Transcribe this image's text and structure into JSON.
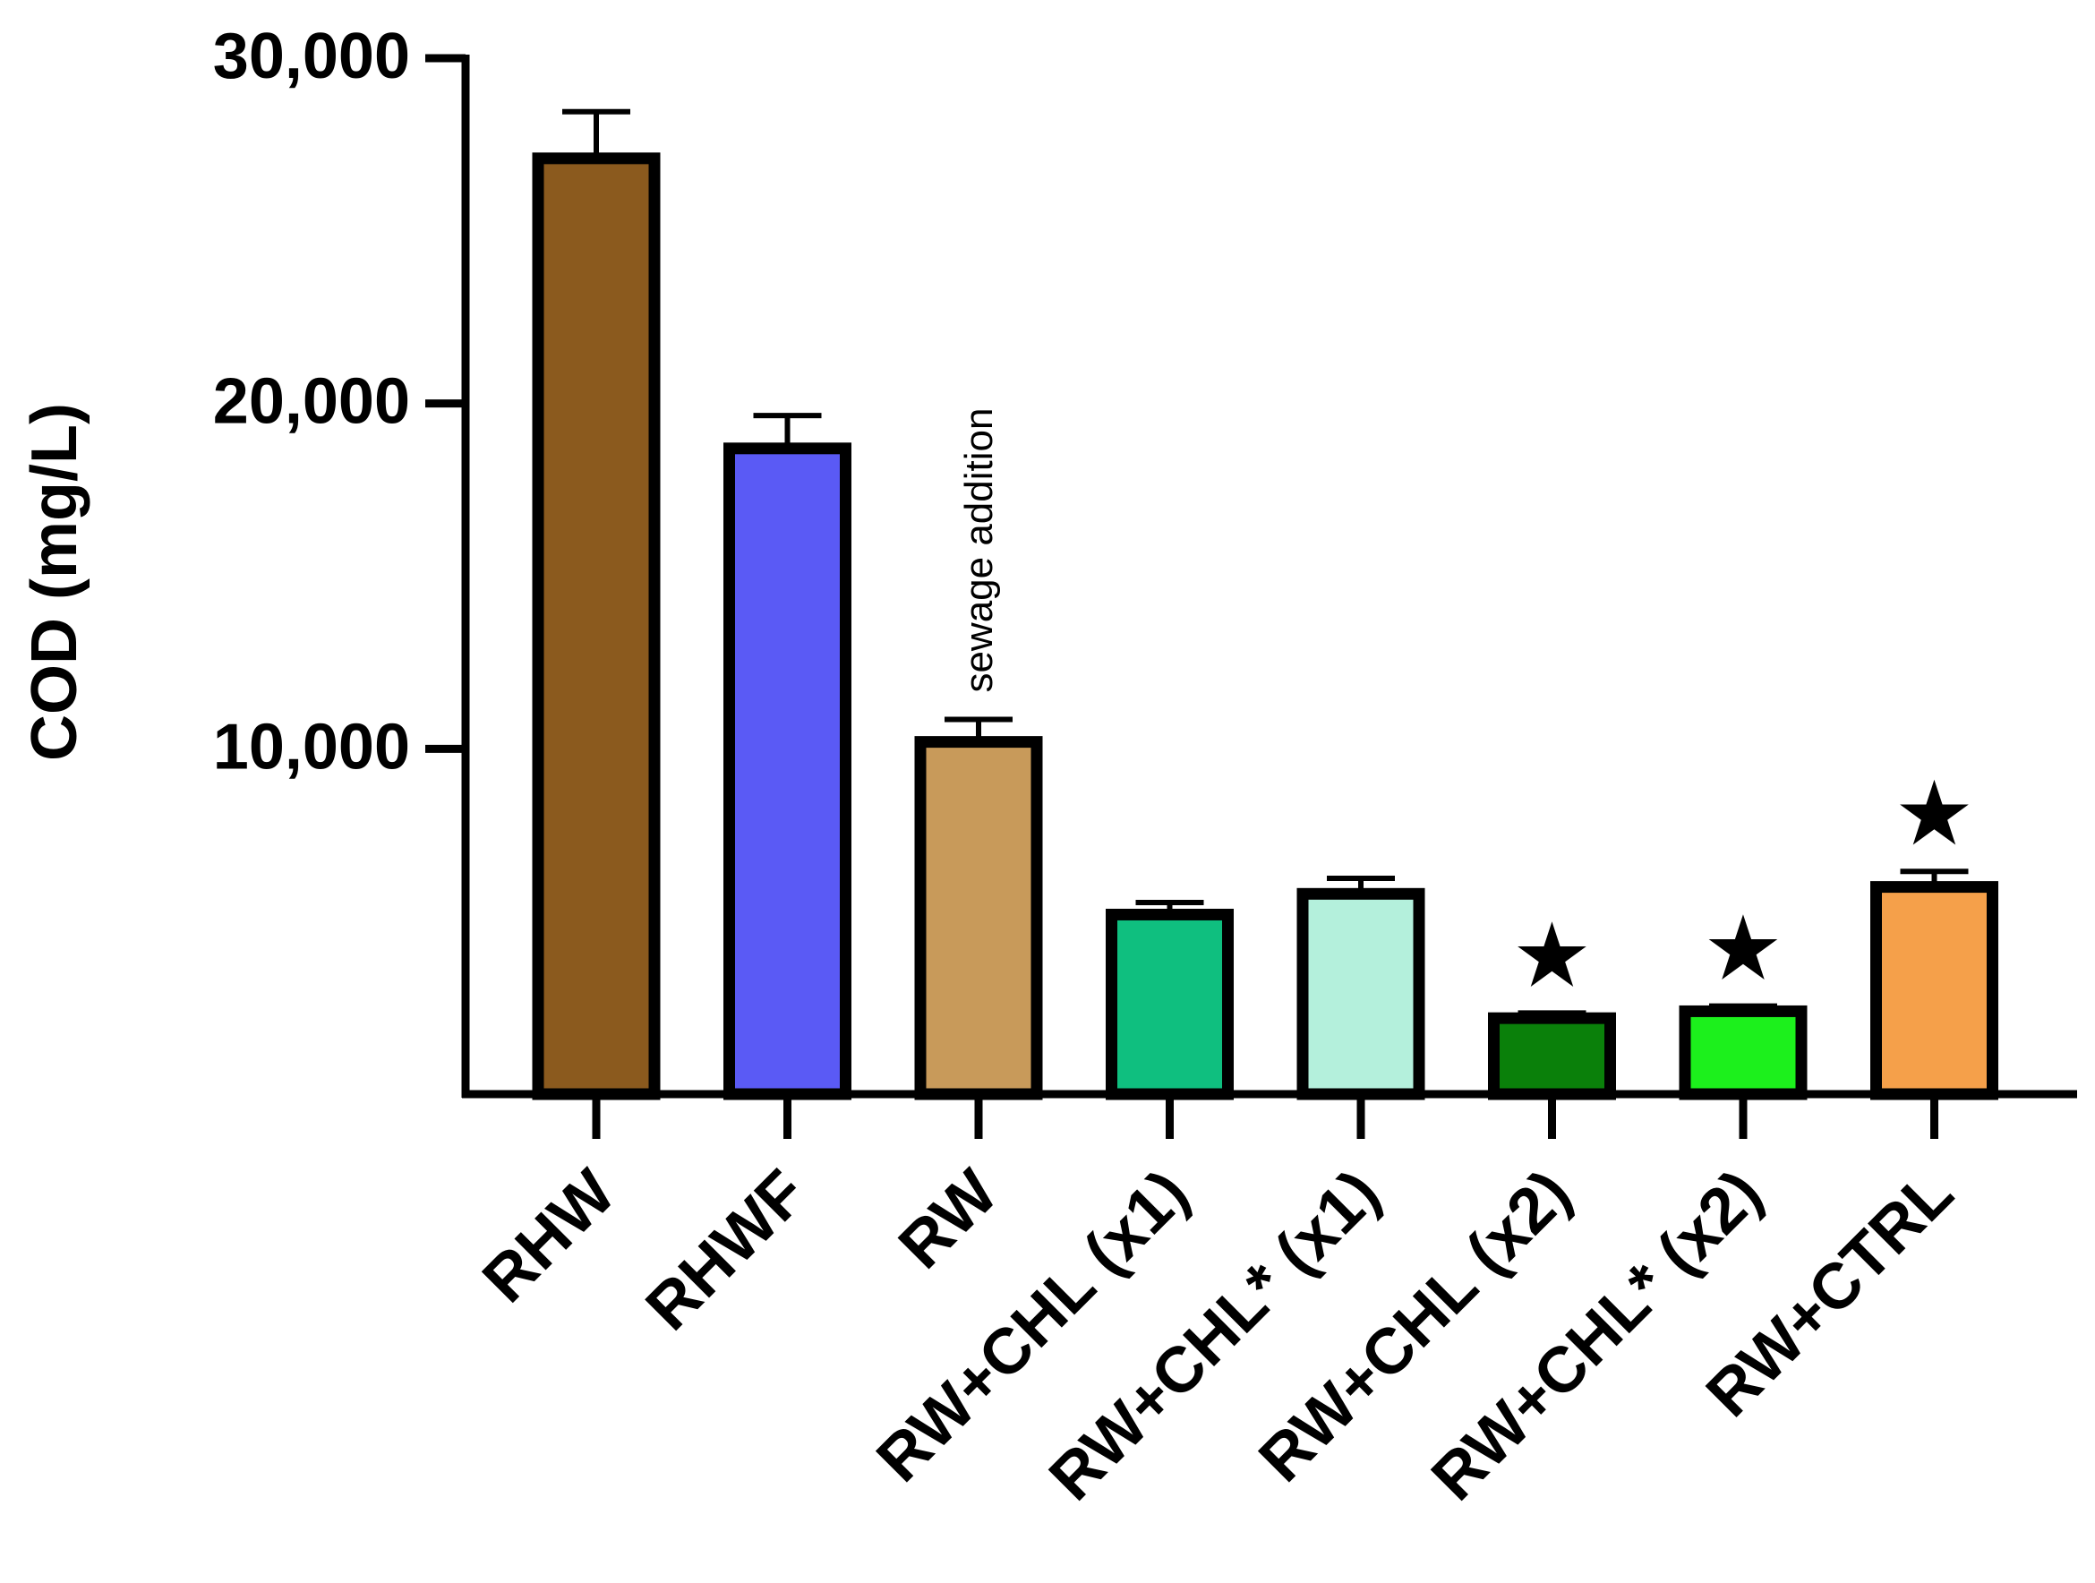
{
  "chart_data": {
    "type": "bar",
    "title": "",
    "xlabel": "",
    "ylabel": "COD (mg/L)",
    "ylim": [
      0,
      30000
    ],
    "yticks": [
      10000,
      20000,
      30000
    ],
    "ytick_labels": [
      "10,000",
      "20,000",
      "30,000"
    ],
    "grid": false,
    "legend": "none",
    "categories": [
      "RHW",
      "RHWF",
      "RW",
      "RW+CHL (x1)",
      "RW+CHL* (x1)",
      "RW+CHL (x2)",
      "RW+CHL* (x2)",
      "RW+CTRL"
    ],
    "values": [
      27100,
      18700,
      10200,
      5200,
      5800,
      2200,
      2400,
      6000
    ],
    "errors": [
      1350,
      950,
      650,
      350,
      450,
      150,
      150,
      450
    ],
    "colors": [
      "#8B5A1E",
      "#5A5AF5",
      "#C89A5A",
      "#0FBF7F",
      "#B4F0DC",
      "#0A800A",
      "#1CF01C",
      "#F5A04A"
    ],
    "significance": [
      "",
      "",
      "",
      "",
      "",
      "★",
      "★",
      "★"
    ],
    "annotations": [
      {
        "category": "RW",
        "text": "sewage addition"
      }
    ]
  }
}
